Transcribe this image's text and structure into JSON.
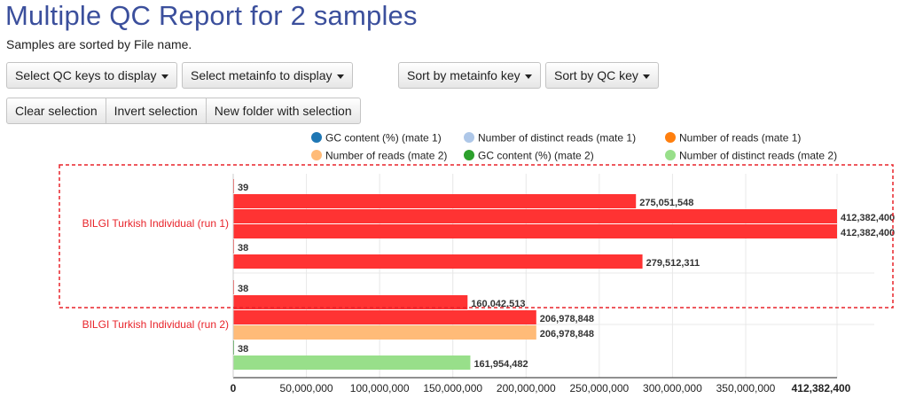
{
  "page": {
    "title": "Multiple QC Report for 2 samples",
    "subtitle": "Samples are sorted by File name."
  },
  "toolbar": {
    "select_qc_keys": "Select QC keys to display",
    "select_metainfo": "Select metainfo to display",
    "sort_metainfo": "Sort by metainfo key",
    "sort_qc": "Sort by QC key"
  },
  "selection_toolbar": {
    "clear": "Clear selection",
    "invert": "Invert selection",
    "new_folder": "New folder with selection"
  },
  "colors": {
    "highlight": "#ff3333",
    "selection_border": "#e8232a",
    "sample_label": "#e8232a",
    "axis": "#222222",
    "grid": "#e8e8e8"
  },
  "chart_data": {
    "type": "bar",
    "orientation": "horizontal",
    "categories": [
      "BILGI Turkish Individual (run 1)",
      "BILGI Turkish Individual (run 2)"
    ],
    "series": [
      {
        "name": "GC content (%) (mate 1)",
        "color": "#1f77b4",
        "values": [
          39,
          38
        ]
      },
      {
        "name": "Number of distinct reads (mate 1)",
        "color": "#aec7e8",
        "values": [
          275051548,
          160042513
        ]
      },
      {
        "name": "Number of reads (mate 1)",
        "color": "#ff7f0e",
        "values": [
          412382400,
          206978848
        ]
      },
      {
        "name": "Number of reads (mate 2)",
        "color": "#ffbb78",
        "values": [
          412382400,
          206978848
        ]
      },
      {
        "name": "GC content (%) (mate 2)",
        "color": "#2ca02c",
        "values": [
          38,
          38
        ]
      },
      {
        "name": "Number of distinct reads (mate 2)",
        "color": "#98df8a",
        "values": [
          279512311,
          161954482
        ]
      }
    ],
    "data_labels": [
      [
        "39",
        "275,051,548",
        "412,382,400",
        "412,382,400",
        "38",
        "279,512,311"
      ],
      [
        "38",
        "160,042,513",
        "206,978,848",
        "206,978,848",
        "38",
        "161,954,482"
      ]
    ],
    "highlighted": [
      [
        true,
        true,
        true,
        true,
        true,
        true
      ],
      [
        true,
        true,
        true,
        false,
        false,
        false
      ]
    ],
    "selected_category": "BILGI Turkish Individual (run 1)",
    "x_ticks": [
      0,
      50000000,
      100000000,
      150000000,
      200000000,
      250000000,
      300000000,
      350000000
    ],
    "x_tick_labels": [
      "0",
      "50,000,000",
      "100,000,000",
      "150,000,000",
      "200,000,000",
      "250,000,000",
      "300,000,000",
      "350,000,000"
    ],
    "x_max": 412382400,
    "x_max_label": "412,382,400",
    "xlim": [
      0,
      412382400
    ],
    "grid": true,
    "legend_position": "top-right"
  }
}
